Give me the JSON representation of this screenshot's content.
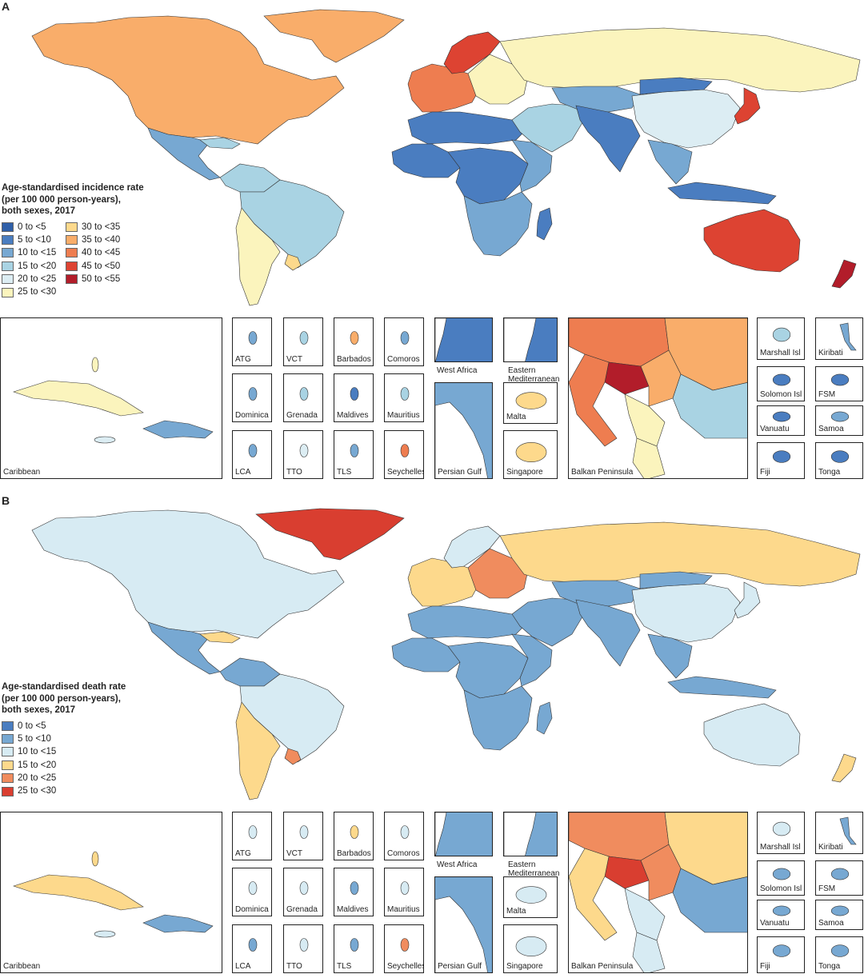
{
  "colors": {
    "a": [
      "#2f5fa8",
      "#4a7dc0",
      "#77a8d2",
      "#a9d3e3",
      "#dcedf3",
      "#fbf4bd",
      "#fdd98c",
      "#f9ad6a",
      "#ee7d50",
      "#dd4332",
      "#b21d2a"
    ],
    "b": [
      "#4a7dc0",
      "#77a8d2",
      "#d7ebf3",
      "#fdd98c",
      "#f08c5e",
      "#d93e30"
    ],
    "ocean": "#ffffff",
    "border": "#333333"
  },
  "panels": [
    {
      "letter": "A",
      "legend": {
        "title_lines": [
          "Age-standardised incidence rate",
          "(per 100 000 person-years),",
          "both sexes, 2017"
        ],
        "items": [
          "0 to <5",
          "5 to <10",
          "10 to <15",
          "15 to <20",
          "20 to <25",
          "25 to <30",
          "30 to <35",
          "35 to <40",
          "40 to <45",
          "45 to <50",
          "50 to <55"
        ]
      },
      "regions": {
        "north_america": 7,
        "greenland": 7,
        "central_america": 2,
        "caribbean_sea_islands": 3,
        "south_america_north": 3,
        "brazil": 3,
        "southern_cone": 5,
        "uruguay": 6,
        "europe_west": 8,
        "scandinavia": 9,
        "europe_east": 5,
        "russia": 5,
        "north_africa": 1,
        "west_africa": 1,
        "central_africa": 1,
        "east_africa": 2,
        "southern_africa": 2,
        "madagascar": 1,
        "middle_east": 3,
        "central_asia": 2,
        "south_asia": 1,
        "china": 4,
        "mongolia": 1,
        "japan": 9,
        "southeast_asia": 2,
        "indonesia": 1,
        "australia": 9,
        "new_zealand": 10
      },
      "insets": [
        {
          "label": "Caribbean",
          "fill": 5
        },
        {
          "label": "ATG",
          "fill": 2
        },
        {
          "label": "VCT",
          "fill": 3
        },
        {
          "label": "Barbados",
          "fill": 7
        },
        {
          "label": "Comoros",
          "fill": 2
        },
        {
          "label": "Dominica",
          "fill": 2
        },
        {
          "label": "Grenada",
          "fill": 3
        },
        {
          "label": "Maldives",
          "fill": 1
        },
        {
          "label": "Mauritius",
          "fill": 3
        },
        {
          "label": "LCA",
          "fill": 2
        },
        {
          "label": "TTO",
          "fill": 4
        },
        {
          "label": "TLS",
          "fill": 2
        },
        {
          "label": "Seychelles",
          "fill": 8
        },
        {
          "label": "West Africa",
          "fill": 1
        },
        {
          "label": "Eastern Mediterranean",
          "fill": 1
        },
        {
          "label": "Persian Gulf",
          "fill": 2
        },
        {
          "label": "Malta",
          "fill": 6
        },
        {
          "label": "Singapore",
          "fill": 6
        },
        {
          "label": "Balkan Peninsula",
          "fill": 7
        },
        {
          "label": "Marshall Isl",
          "fill": 3
        },
        {
          "label": "Kiribati",
          "fill": 2
        },
        {
          "label": "Solomon Isl",
          "fill": 1
        },
        {
          "label": "FSM",
          "fill": 1
        },
        {
          "label": "Vanuatu",
          "fill": 1
        },
        {
          "label": "Samoa",
          "fill": 2
        },
        {
          "label": "Fiji",
          "fill": 1
        },
        {
          "label": "Tonga",
          "fill": 1
        }
      ]
    },
    {
      "letter": "B",
      "legend": {
        "title_lines": [
          "Age-standardised death rate",
          "(per 100 000 person-years),",
          "both sexes, 2017"
        ],
        "items": [
          "0 to <5",
          "5 to <10",
          "10 to <15",
          "15 to <20",
          "20 to <25",
          "25 to <30"
        ]
      },
      "regions": {
        "north_america": 2,
        "greenland": 5,
        "central_america": 1,
        "caribbean_sea_islands": 3,
        "south_america_north": 1,
        "brazil": 2,
        "southern_cone": 3,
        "uruguay": 4,
        "europe_west": 3,
        "scandinavia": 2,
        "europe_east": 4,
        "russia": 3,
        "north_africa": 1,
        "west_africa": 1,
        "central_africa": 1,
        "east_africa": 1,
        "southern_africa": 1,
        "madagascar": 1,
        "middle_east": 1,
        "central_asia": 1,
        "south_asia": 1,
        "china": 2,
        "mongolia": 1,
        "japan": 2,
        "southeast_asia": 1,
        "indonesia": 1,
        "australia": 2,
        "new_zealand": 3
      },
      "insets": [
        {
          "label": "Caribbean",
          "fill": 3
        },
        {
          "label": "ATG",
          "fill": 2
        },
        {
          "label": "VCT",
          "fill": 2
        },
        {
          "label": "Barbados",
          "fill": 3
        },
        {
          "label": "Comoros",
          "fill": 2
        },
        {
          "label": "Dominica",
          "fill": 2
        },
        {
          "label": "Grenada",
          "fill": 2
        },
        {
          "label": "Maldives",
          "fill": 1
        },
        {
          "label": "Mauritius",
          "fill": 2
        },
        {
          "label": "LCA",
          "fill": 1
        },
        {
          "label": "TTO",
          "fill": 2
        },
        {
          "label": "TLS",
          "fill": 1
        },
        {
          "label": "Seychelles",
          "fill": 4
        },
        {
          "label": "West Africa",
          "fill": 1
        },
        {
          "label": "Eastern Mediterranean",
          "fill": 1
        },
        {
          "label": "Persian Gulf",
          "fill": 1
        },
        {
          "label": "Malta",
          "fill": 2
        },
        {
          "label": "Singapore",
          "fill": 2
        },
        {
          "label": "Balkan Peninsula",
          "fill": 3
        },
        {
          "label": "Marshall Isl",
          "fill": 2
        },
        {
          "label": "Kiribati",
          "fill": 1
        },
        {
          "label": "Solomon Isl",
          "fill": 1
        },
        {
          "label": "FSM",
          "fill": 1
        },
        {
          "label": "Vanuatu",
          "fill": 1
        },
        {
          "label": "Samoa",
          "fill": 1
        },
        {
          "label": "Fiji",
          "fill": 1
        },
        {
          "label": "Tonga",
          "fill": 1
        }
      ]
    }
  ]
}
